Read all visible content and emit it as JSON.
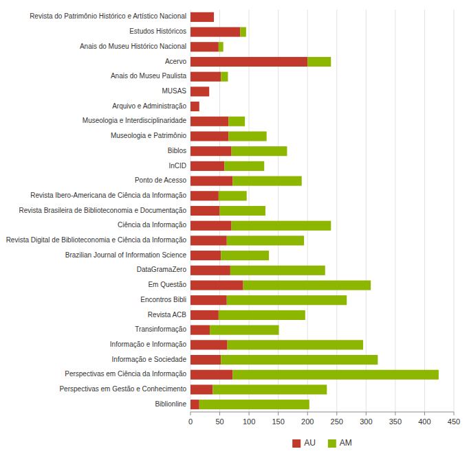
{
  "chart_data": {
    "type": "bar",
    "orientation": "horizontal",
    "stacked": true,
    "categories": [
      "Revista do Patrimônio Histórico e Artístico Nacional",
      "Estudos Históricos",
      "Anais do Museu Histórico Nacional",
      "Acervo",
      "Anais do Museu Paulista",
      "MUSAS",
      "Arquivo e Administração",
      "Museologia e Interdisciplinaridade",
      "Museologia e Patrimônio",
      "Biblos",
      "InCID",
      "Ponto de Acesso",
      "Revista Ibero-Americana de Ciência da Informação",
      "Revista Brasileira de Biblioteconomia e Documentação",
      "Ciência da Informação",
      "Revista Digital de Biblioteconomia e Ciência da Informação",
      "Brazilian Journal of Information Science",
      "DataGramaZero",
      "Em Questão",
      "Encontros Bibli",
      "Revista ACB",
      "Transinformação",
      "Informação e Informação",
      "Informação e Sociedade",
      "Perspectivas em Ciência da Informação",
      "Perspectivas em Gestão e Conhecimento",
      "Biblionline"
    ],
    "series": [
      {
        "name": "AU",
        "color": "#c0392b",
        "values": [
          40,
          85,
          48,
          200,
          52,
          32,
          15,
          65,
          65,
          70,
          58,
          72,
          48,
          50,
          70,
          62,
          52,
          68,
          90,
          62,
          48,
          33,
          63,
          52,
          72,
          38,
          15
        ]
      },
      {
        "name": "AM",
        "color": "#8db600",
        "values": [
          0,
          10,
          8,
          40,
          12,
          0,
          0,
          28,
          65,
          95,
          68,
          118,
          48,
          78,
          170,
          132,
          82,
          162,
          218,
          205,
          148,
          118,
          232,
          268,
          352,
          195,
          188
        ]
      }
    ],
    "xlim": [
      0,
      450
    ],
    "xticks": [
      0,
      50,
      100,
      150,
      200,
      250,
      300,
      350,
      400,
      450
    ],
    "grid": true,
    "legend": "bottom"
  }
}
